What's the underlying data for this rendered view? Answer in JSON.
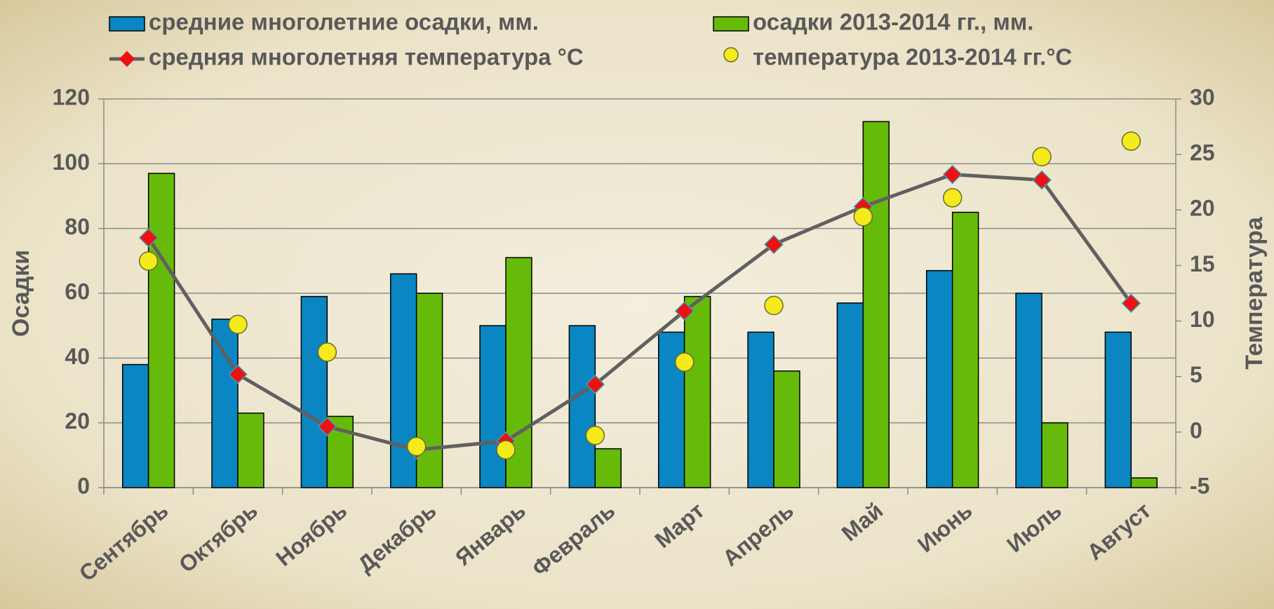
{
  "chart_data": {
    "type": "bar",
    "categories": [
      "Сентябрь",
      "Октябрь",
      "Ноябрь",
      "Декабрь",
      "Январь",
      "Февраль",
      "Март",
      "Апрель",
      "Май",
      "Июнь",
      "Июль",
      "Август"
    ],
    "series": [
      {
        "name": "средние многолетние осадки, мм.",
        "type": "bar",
        "color": "#0a86c2",
        "values": [
          38,
          52,
          59,
          66,
          50,
          50,
          48,
          48,
          57,
          67,
          60,
          48
        ]
      },
      {
        "name": "осадки 2013-2014 гг., мм.",
        "type": "bar",
        "color": "#66bb0a",
        "values": [
          97,
          23,
          22,
          60,
          71,
          12,
          59,
          36,
          113,
          85,
          20,
          3
        ]
      },
      {
        "name": "средняя многолетняя температура °С",
        "type": "line",
        "axis": "y2",
        "color": "#606060",
        "marker_color": "#ee1111",
        "values": [
          17.5,
          5.2,
          0.5,
          -1.6,
          -0.8,
          4.3,
          10.9,
          16.9,
          20.3,
          23.2,
          22.7,
          11.6
        ]
      },
      {
        "name": "температура 2013-2014 гг.°С",
        "type": "scatter",
        "axis": "y2",
        "color": "#f5ea1a",
        "values": [
          15.4,
          9.7,
          7.2,
          -1.3,
          -1.6,
          -0.3,
          6.3,
          11.4,
          19.4,
          21.1,
          24.8,
          26.2
        ]
      }
    ],
    "y_label": "Осадки",
    "y2_label": "Температура",
    "ylim": [
      0,
      120
    ],
    "yticks": [
      0,
      20,
      40,
      60,
      80,
      100,
      120
    ],
    "y2lim": [
      -5,
      30
    ],
    "y2ticks": [
      -5,
      0,
      5,
      10,
      15,
      20,
      25,
      30
    ],
    "grid": true
  }
}
